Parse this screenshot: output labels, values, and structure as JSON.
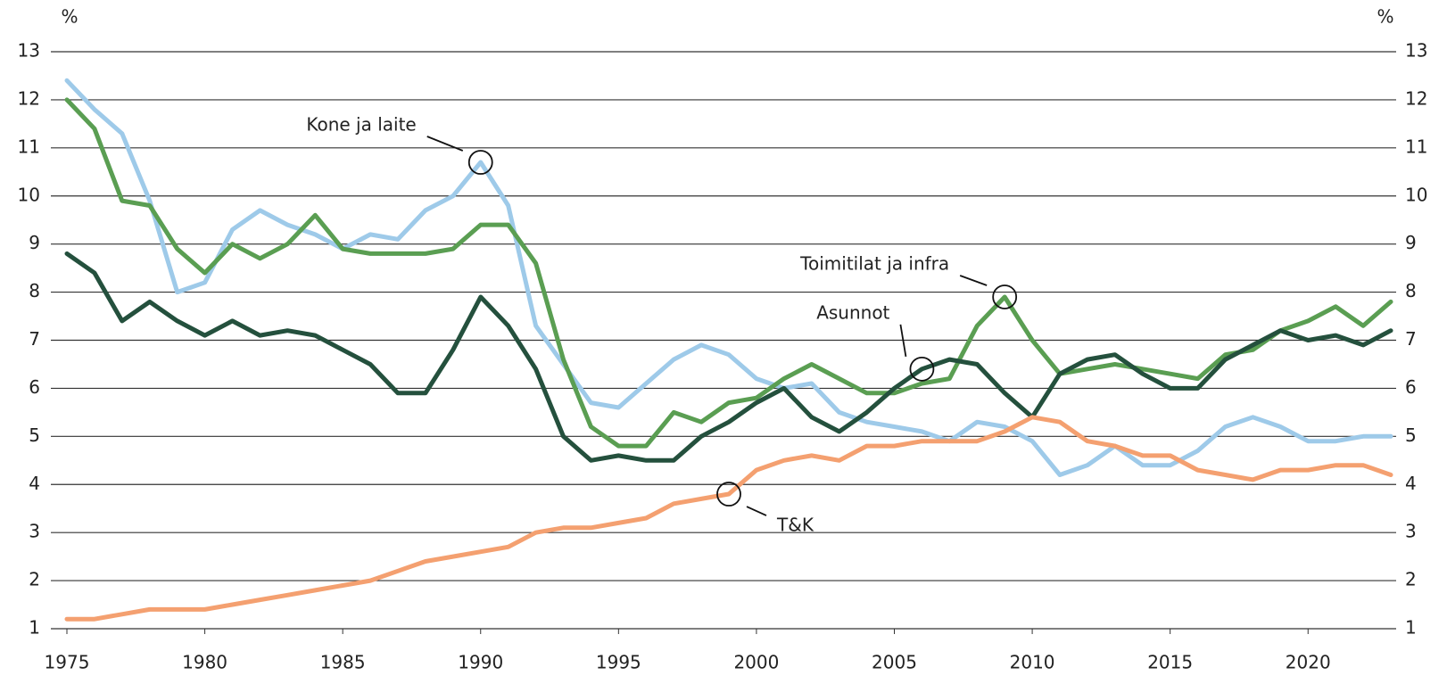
{
  "chart_data": {
    "type": "line",
    "y_unit": "%",
    "x": [
      1975,
      1976,
      1977,
      1978,
      1979,
      1980,
      1981,
      1982,
      1983,
      1984,
      1985,
      1986,
      1987,
      1988,
      1989,
      1990,
      1991,
      1992,
      1993,
      1994,
      1995,
      1996,
      1997,
      1998,
      1999,
      2000,
      2001,
      2002,
      2003,
      2004,
      2005,
      2006,
      2007,
      2008,
      2009,
      2010,
      2011,
      2012,
      2013,
      2014,
      2015,
      2016,
      2017,
      2018,
      2019,
      2020,
      2021,
      2022,
      2023
    ],
    "series": [
      {
        "name": "Kone ja laite",
        "color": "#9ecae9",
        "values": [
          12.4,
          11.8,
          11.3,
          9.9,
          8.0,
          8.2,
          9.3,
          9.7,
          9.4,
          9.2,
          8.9,
          9.2,
          9.1,
          9.7,
          10.0,
          10.7,
          9.8,
          7.3,
          6.5,
          5.7,
          5.6,
          6.1,
          6.6,
          6.9,
          6.7,
          6.2,
          6.0,
          6.1,
          5.5,
          5.3,
          5.2,
          5.1,
          4.9,
          5.3,
          5.2,
          4.9,
          4.2,
          4.4,
          4.8,
          4.4,
          4.4,
          4.7,
          5.2,
          5.4,
          5.2,
          4.9,
          4.9,
          5.0,
          5.0
        ]
      },
      {
        "name": "Toimitilat ja infra",
        "color": "#5a9e52",
        "values": [
          12.0,
          11.4,
          9.9,
          9.8,
          8.9,
          8.4,
          9.0,
          8.7,
          9.0,
          9.6,
          8.9,
          8.8,
          8.8,
          8.8,
          8.9,
          9.4,
          9.4,
          8.6,
          6.6,
          5.2,
          4.8,
          4.8,
          5.5,
          5.3,
          5.7,
          5.8,
          6.2,
          6.5,
          6.2,
          5.9,
          5.9,
          6.1,
          6.2,
          7.3,
          7.9,
          7.0,
          6.3,
          6.4,
          6.5,
          6.4,
          6.3,
          6.2,
          6.7,
          6.8,
          7.2,
          7.4,
          7.7,
          7.3,
          7.8
        ]
      },
      {
        "name": "Asunnot",
        "color": "#24503d",
        "values": [
          8.8,
          8.4,
          7.4,
          7.8,
          7.4,
          7.1,
          7.4,
          7.1,
          7.2,
          7.1,
          6.8,
          6.5,
          5.9,
          5.9,
          6.8,
          7.9,
          7.3,
          6.4,
          5.0,
          4.5,
          4.6,
          4.5,
          4.5,
          5.0,
          5.3,
          5.7,
          6.0,
          5.4,
          5.1,
          5.5,
          6.0,
          6.4,
          6.6,
          6.5,
          5.9,
          5.4,
          6.3,
          6.6,
          6.7,
          6.3,
          6.0,
          6.0,
          6.6,
          6.9,
          7.2,
          7.0,
          7.1,
          6.9,
          7.2
        ]
      },
      {
        "name": "T&K",
        "color": "#f4a070",
        "values": [
          1.2,
          1.2,
          1.3,
          1.4,
          1.4,
          1.4,
          1.5,
          1.6,
          1.7,
          1.8,
          1.9,
          2.0,
          2.2,
          2.4,
          2.5,
          2.6,
          2.7,
          3.0,
          3.1,
          3.1,
          3.2,
          3.3,
          3.6,
          3.7,
          3.8,
          4.3,
          4.5,
          4.6,
          4.5,
          4.8,
          4.8,
          4.9,
          4.9,
          4.9,
          5.1,
          5.4,
          5.3,
          4.9,
          4.8,
          4.6,
          4.6,
          4.3,
          4.2,
          4.1,
          4.3,
          4.3,
          4.4,
          4.4,
          4.2
        ]
      }
    ],
    "xlim": [
      1975,
      2023
    ],
    "xticks": [
      1975,
      1980,
      1985,
      1990,
      1995,
      2000,
      2005,
      2010,
      2015,
      2020
    ],
    "ylim": [
      1,
      13
    ],
    "yticks": [
      1,
      2,
      3,
      4,
      5,
      6,
      7,
      8,
      9,
      10,
      11,
      12,
      13
    ],
    "grid": true
  }
}
